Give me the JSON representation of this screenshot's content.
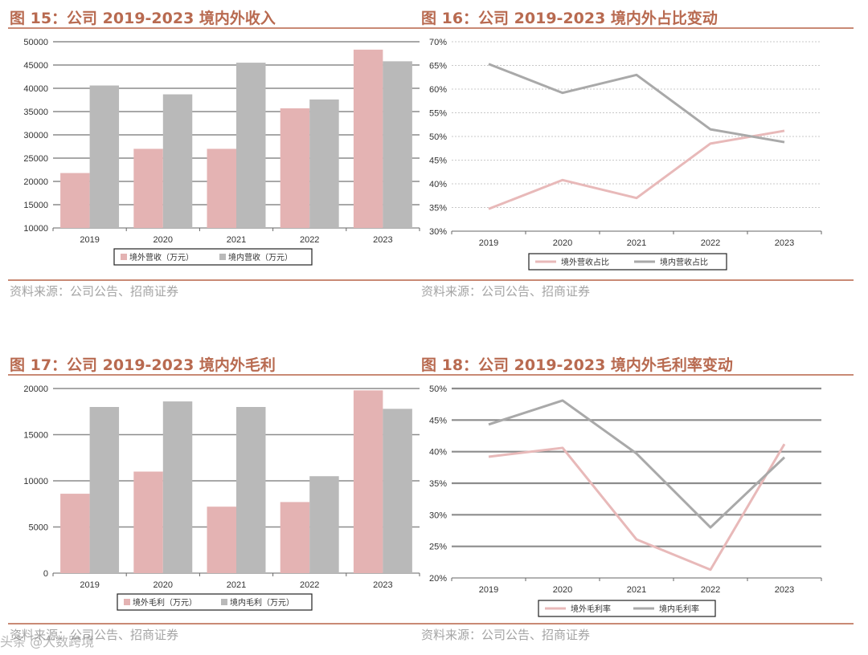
{
  "colors": {
    "pink": "#e4b3b3",
    "gray": "#b9b9b9",
    "pink_line": "#e8b9b9",
    "gray_line": "#a9a9a9",
    "title": "#b86a50"
  },
  "source_text": "资料来源：公司公告、招商证券",
  "watermark": "头条 @大数跨境",
  "panels": [
    {
      "title": "图 15：公司 2019-2023 境内外收入",
      "source": "资料来源：公司公告、招商证券"
    },
    {
      "title": "图 16：公司 2019-2023 境内外占比变动",
      "source": "资料来源：公司公告、招商证券"
    },
    {
      "title": "图 17：公司 2019-2023 境内外毛利",
      "source": "资料来源：公司公告、招商证券"
    },
    {
      "title": "图 18：公司 2019-2023 境内外毛利率变动",
      "source": "资料来源：公司公告、招商证券"
    }
  ],
  "chart_data": [
    {
      "type": "bar",
      "title": "图 15：公司 2019-2023 境内外收入",
      "categories": [
        "2019",
        "2020",
        "2021",
        "2022",
        "2023"
      ],
      "ylim": [
        10000,
        50000
      ],
      "yticks": [
        "10000",
        "15000",
        "20000",
        "25000",
        "30000",
        "35000",
        "40000",
        "45000",
        "50000"
      ],
      "legend_position": "bottom",
      "grid": true,
      "series": [
        {
          "name": "境外营收（万元）",
          "values": [
            21800,
            27000,
            27000,
            35700,
            48300
          ]
        },
        {
          "name": "境内营收（万元）",
          "values": [
            40600,
            38700,
            45500,
            37600,
            45800
          ]
        }
      ]
    },
    {
      "type": "line",
      "title": "图 16：公司 2019-2023 境内外占比变动",
      "categories": [
        "2019",
        "2020",
        "2021",
        "2022",
        "2023"
      ],
      "ylim": [
        30,
        70
      ],
      "yticks": [
        "30%",
        "35%",
        "40%",
        "45%",
        "50%",
        "55%",
        "60%",
        "65%",
        "70%"
      ],
      "legend_position": "bottom",
      "grid": true,
      "series": [
        {
          "name": "境外营收占比",
          "values": [
            34.7,
            40.8,
            37.0,
            48.5,
            51.2
          ]
        },
        {
          "name": "境内营收占比",
          "values": [
            65.3,
            59.2,
            63.0,
            51.5,
            48.8
          ]
        }
      ]
    },
    {
      "type": "bar",
      "title": "图 17：公司 2019-2023 境内外毛利",
      "categories": [
        "2019",
        "2020",
        "2021",
        "2022",
        "2023"
      ],
      "ylim": [
        0,
        20000
      ],
      "yticks": [
        "0",
        "5000",
        "10000",
        "15000",
        "20000"
      ],
      "legend_position": "bottom",
      "grid": true,
      "series": [
        {
          "name": "境外毛利（万元）",
          "values": [
            8600,
            11000,
            7200,
            7700,
            19800
          ]
        },
        {
          "name": "境内毛利（万元）",
          "values": [
            18000,
            18600,
            18000,
            10500,
            17800
          ]
        }
      ]
    },
    {
      "type": "line",
      "title": "图 18：公司 2019-2023 境内外毛利率变动",
      "categories": [
        "2019",
        "2020",
        "2021",
        "2022",
        "2023"
      ],
      "ylim": [
        20,
        50
      ],
      "yticks": [
        "20%",
        "25%",
        "30%",
        "35%",
        "40%",
        "45%",
        "50%"
      ],
      "legend_position": "bottom",
      "grid": true,
      "series": [
        {
          "name": "境外毛利率",
          "values": [
            39.2,
            40.6,
            26.1,
            21.3,
            41.2
          ]
        },
        {
          "name": "境内毛利率",
          "values": [
            44.3,
            48.1,
            39.7,
            28.0,
            39.1
          ]
        }
      ]
    }
  ]
}
